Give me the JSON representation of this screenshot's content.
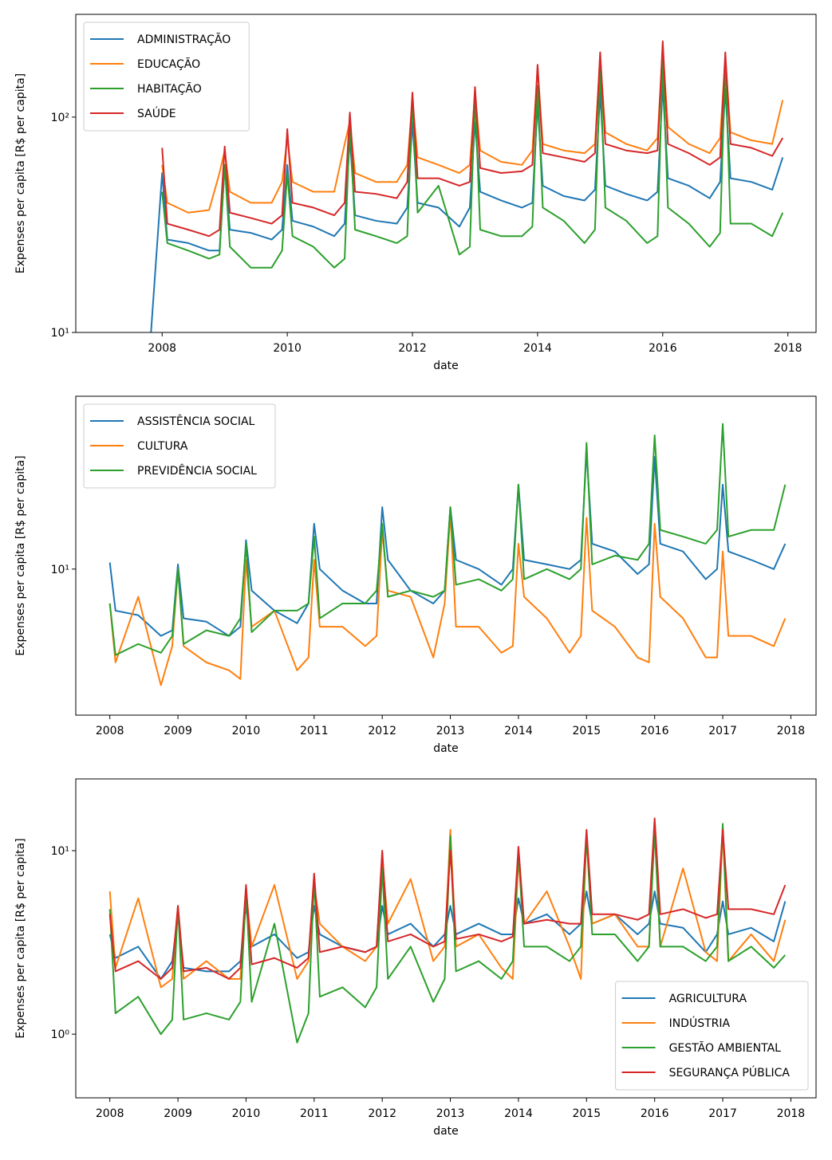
{
  "chart_data": [
    {
      "type": "line",
      "xlabel": "date",
      "ylabel": "Expenses per capita [R$ per capita]",
      "log_y": true,
      "legend_loc": "upper left",
      "xlim": [
        2006.62,
        2018.45
      ],
      "xticks": [
        2008,
        2010,
        2012,
        2014,
        2016,
        2018
      ],
      "ylim": [
        10,
        300
      ],
      "yticks": [
        {
          "value": 10,
          "label": "10¹"
        },
        {
          "value": 100,
          "label": "10²"
        }
      ],
      "x": [
        2007.75,
        2008,
        2008.083,
        2008.417,
        2008.75,
        2008.917,
        2009,
        2009.083,
        2009.417,
        2009.75,
        2009.917,
        2010,
        2010.083,
        2010.417,
        2010.75,
        2010.917,
        2011,
        2011.083,
        2011.417,
        2011.75,
        2011.917,
        2012,
        2012.083,
        2012.417,
        2012.75,
        2012.917,
        2013,
        2013.083,
        2013.417,
        2013.75,
        2013.917,
        2014,
        2014.083,
        2014.417,
        2014.75,
        2014.917,
        2015,
        2015.083,
        2015.417,
        2015.75,
        2015.917,
        2016,
        2016.083,
        2016.417,
        2016.75,
        2016.917,
        2017,
        2017.083,
        2017.417,
        2017.75,
        2017.917
      ],
      "series": [
        {
          "name": "ADMINISTRAÇÃO",
          "color": "#1f77b4",
          "values": [
            5,
            55,
            27,
            26,
            24,
            24,
            60,
            30,
            29,
            27,
            30,
            60,
            33,
            31,
            28,
            32,
            80,
            35,
            33,
            32,
            38,
            95,
            40,
            38,
            31,
            38,
            95,
            45,
            41,
            38,
            40,
            115,
            48,
            43,
            41,
            46,
            130,
            48,
            44,
            41,
            45,
            140,
            52,
            48,
            42,
            50,
            135,
            52,
            50,
            46,
            65
          ]
        },
        {
          "name": "EDUCAÇÃO",
          "color": "#ff7f0e",
          "values": [
            null,
            60,
            40,
            36,
            37,
            55,
            70,
            45,
            40,
            40,
            50,
            80,
            50,
            45,
            45,
            75,
            95,
            55,
            50,
            50,
            60,
            120,
            65,
            60,
            55,
            60,
            130,
            70,
            62,
            60,
            70,
            170,
            75,
            70,
            68,
            75,
            190,
            85,
            75,
            70,
            80,
            210,
            90,
            75,
            68,
            80,
            190,
            85,
            78,
            75,
            120
          ]
        },
        {
          "name": "HABITAÇÃO",
          "color": "#2ca02c",
          "values": [
            null,
            45,
            26,
            24,
            22,
            23,
            60,
            25,
            20,
            20,
            24,
            55,
            28,
            25,
            20,
            22,
            95,
            30,
            28,
            26,
            28,
            120,
            36,
            48,
            23,
            25,
            125,
            30,
            28,
            28,
            31,
            140,
            38,
            33,
            26,
            30,
            170,
            38,
            33,
            26,
            28,
            185,
            38,
            32,
            25,
            29,
            185,
            32,
            32,
            28,
            36
          ]
        },
        {
          "name": "SAÚDE",
          "color": "#d62728",
          "values": [
            null,
            72,
            32,
            30,
            28,
            30,
            73,
            36,
            34,
            32,
            35,
            88,
            40,
            38,
            35,
            40,
            105,
            45,
            44,
            42,
            50,
            130,
            52,
            52,
            48,
            50,
            138,
            58,
            55,
            56,
            60,
            175,
            68,
            65,
            62,
            68,
            200,
            75,
            70,
            68,
            70,
            225,
            75,
            68,
            60,
            65,
            200,
            75,
            72,
            66,
            80
          ]
        }
      ]
    },
    {
      "type": "line",
      "xlabel": "date",
      "ylabel": "Expenses per capita [R$ per capita]",
      "log_y": true,
      "legend_loc": "upper left",
      "xlim": [
        2007.5,
        2018.37
      ],
      "xticks": [
        2008,
        2009,
        2010,
        2011,
        2012,
        2013,
        2014,
        2015,
        2016,
        2017,
        2018
      ],
      "ylim": [
        2.2,
        60
      ],
      "yticks": [
        {
          "value": 10,
          "label": "10¹"
        }
      ],
      "x": [
        2008,
        2008.083,
        2008.417,
        2008.75,
        2008.917,
        2009,
        2009.083,
        2009.417,
        2009.75,
        2009.917,
        2010,
        2010.083,
        2010.417,
        2010.75,
        2010.917,
        2011,
        2011.083,
        2011.417,
        2011.75,
        2011.917,
        2012,
        2012.083,
        2012.417,
        2012.75,
        2012.917,
        2013,
        2013.083,
        2013.417,
        2013.75,
        2013.917,
        2014,
        2014.083,
        2014.417,
        2014.75,
        2014.917,
        2015,
        2015.083,
        2015.417,
        2015.75,
        2015.917,
        2016,
        2016.083,
        2016.417,
        2016.75,
        2016.917,
        2017,
        2017.083,
        2017.417,
        2017.75,
        2017.917
      ],
      "series": [
        {
          "name": "ASSISTÊNCIA SOCIAL",
          "color": "#1f77b4",
          "values": [
            10.7,
            6.5,
            6.2,
            5,
            5.3,
            10.5,
            6,
            5.8,
            5,
            5.5,
            13.5,
            8,
            6.5,
            5.7,
            7,
            16,
            10,
            8,
            7,
            7,
            19,
            11,
            8,
            7,
            8,
            19,
            11,
            10,
            8.5,
            10,
            24,
            11,
            10.5,
            10,
            11,
            34,
            13,
            12,
            9.5,
            10.5,
            32,
            13,
            12,
            9,
            10,
            24,
            12,
            11,
            10,
            13
          ]
        },
        {
          "name": "CULTURA",
          "color": "#ff7f0e",
          "values": [
            7,
            3.8,
            7.5,
            3,
            4.5,
            10,
            4.5,
            3.8,
            3.5,
            3.2,
            11,
            5.5,
            6.5,
            3.5,
            4,
            11,
            5.5,
            5.5,
            4.5,
            5,
            15,
            8,
            7.5,
            4,
            7,
            18,
            5.5,
            5.5,
            4.2,
            4.5,
            13,
            7.5,
            6,
            4.2,
            5,
            17,
            6.5,
            5.5,
            4,
            3.8,
            16,
            7.5,
            6,
            4,
            4,
            12,
            5,
            5,
            4.5,
            6
          ]
        },
        {
          "name": "PREVIDÊNCIA SOCIAL",
          "color": "#2ca02c",
          "values": [
            7,
            4.1,
            4.6,
            4.2,
            5,
            10,
            4.6,
            5.3,
            5,
            6,
            13,
            5.2,
            6.5,
            6.5,
            7,
            14,
            6,
            7,
            7,
            8,
            16,
            7.5,
            8,
            7.5,
            8,
            19,
            8.5,
            9,
            8,
            9,
            24,
            9,
            10,
            9,
            10,
            37,
            10.5,
            11.5,
            11,
            13,
            40,
            15,
            14,
            13,
            15,
            45,
            14,
            15,
            15,
            24
          ]
        }
      ]
    },
    {
      "type": "line",
      "xlabel": "date",
      "ylabel": "Expenses per capita [R$ per capita]",
      "log_y": true,
      "legend_loc": "lower right",
      "xlim": [
        2007.5,
        2018.37
      ],
      "xticks": [
        2008,
        2009,
        2010,
        2011,
        2012,
        2013,
        2014,
        2015,
        2016,
        2017,
        2018
      ],
      "ylim": [
        0.45,
        24.6
      ],
      "yticks": [
        {
          "value": 1,
          "label": "10⁰"
        },
        {
          "value": 10,
          "label": "10¹"
        }
      ],
      "x": [
        2008,
        2008.083,
        2008.417,
        2008.75,
        2008.917,
        2009,
        2009.083,
        2009.417,
        2009.75,
        2009.917,
        2010,
        2010.083,
        2010.417,
        2010.75,
        2010.917,
        2011,
        2011.083,
        2011.417,
        2011.75,
        2011.917,
        2012,
        2012.083,
        2012.417,
        2012.75,
        2012.917,
        2013,
        2013.083,
        2013.417,
        2013.75,
        2013.917,
        2014,
        2014.083,
        2014.417,
        2014.75,
        2014.917,
        2015,
        2015.083,
        2015.417,
        2015.75,
        2015.917,
        2016,
        2016.083,
        2016.417,
        2016.75,
        2016.917,
        2017,
        2017.083,
        2017.417,
        2017.75,
        2017.917
      ],
      "series": [
        {
          "name": "AGRICULTURA",
          "color": "#1f77b4",
          "values": [
            3.5,
            2.6,
            3,
            2,
            2.5,
            4.5,
            2.3,
            2.2,
            2.2,
            2.5,
            5,
            3,
            3.5,
            2.6,
            2.8,
            5,
            3.5,
            3,
            2.8,
            3,
            5,
            3.5,
            4,
            3,
            3.5,
            5,
            3.5,
            4,
            3.5,
            3.5,
            5.5,
            4,
            4.5,
            3.5,
            4,
            6,
            4,
            4.5,
            3.5,
            4,
            6,
            4,
            3.8,
            2.8,
            3.5,
            5.3,
            3.5,
            3.8,
            3.2,
            5.3
          ]
        },
        {
          "name": "INDÚSTRIA",
          "color": "#ff7f0e",
          "values": [
            6,
            2.3,
            5.5,
            1.8,
            2,
            5,
            2,
            2.5,
            2,
            2,
            6,
            3,
            6.5,
            2,
            2.5,
            6.5,
            4,
            3,
            2.5,
            3,
            9,
            4,
            7,
            2.5,
            3,
            13,
            3,
            3.5,
            2.3,
            2,
            9,
            4,
            6,
            3,
            2,
            12,
            4,
            4.5,
            3,
            3,
            13,
            3,
            8,
            2.8,
            2.5,
            13,
            2.5,
            3.5,
            2.5,
            4.2
          ]
        },
        {
          "name": "GESTÃO AMBIENTAL",
          "color": "#2ca02c",
          "values": [
            4.8,
            1.3,
            1.6,
            1,
            1.2,
            5,
            1.2,
            1.3,
            1.2,
            1.5,
            6,
            1.5,
            4,
            0.9,
            1.3,
            7,
            1.6,
            1.8,
            1.4,
            1.8,
            8,
            2,
            3,
            1.5,
            2,
            12,
            2.2,
            2.5,
            2,
            2.5,
            10,
            3,
            3,
            2.5,
            3,
            12,
            3.5,
            3.5,
            2.5,
            3,
            13,
            3,
            3,
            2.5,
            3,
            14,
            2.5,
            3,
            2.3,
            2.7
          ]
        },
        {
          "name": "SEGURANÇA PÚBLICA",
          "color": "#d62728",
          "values": [
            4.5,
            2.2,
            2.5,
            2,
            2.3,
            5,
            2.2,
            2.3,
            2,
            2.3,
            6.5,
            2.4,
            2.6,
            2.3,
            2.6,
            7.5,
            2.8,
            3,
            2.8,
            3,
            10,
            3.2,
            3.5,
            3,
            3.2,
            10,
            3.3,
            3.5,
            3.2,
            3.4,
            10.5,
            4,
            4.2,
            4,
            4,
            13,
            4.5,
            4.5,
            4.2,
            4.5,
            15,
            4.5,
            4.8,
            4.3,
            4.5,
            13,
            4.8,
            4.8,
            4.5,
            6.5
          ]
        }
      ]
    }
  ]
}
